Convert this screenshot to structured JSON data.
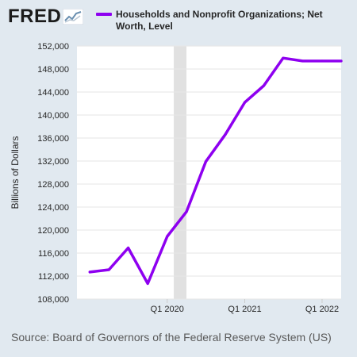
{
  "logo": {
    "text": "FRED",
    "icon": "line-graph-icon"
  },
  "colors": {
    "background": "#e1e9f0",
    "plot_background": "#ffffff",
    "series": "#8e00f0",
    "recession": "#e1e1e1",
    "grid": "#e6e6e6",
    "text": "#262626"
  },
  "chart_data": {
    "type": "line",
    "title": "",
    "xlabel": "",
    "ylabel": "Billions of Dollars",
    "ylim": [
      108000,
      152000
    ],
    "yticks": [
      108000,
      112000,
      116000,
      120000,
      124000,
      128000,
      132000,
      136000,
      140000,
      144000,
      148000,
      152000
    ],
    "xtick_labels": [
      {
        "x": "2020-01-01",
        "label": "Q1 2020"
      },
      {
        "x": "2021-01-01",
        "label": "Q1 2021"
      },
      {
        "x": "2022-01-01",
        "label": "Q1 2022"
      }
    ],
    "grid": "horizontal",
    "legend_position": "top",
    "recession_shading": [
      {
        "start": "2020-02-01",
        "end": "2020-04-01"
      }
    ],
    "series": [
      {
        "name": "Households and Nonprofit Organizations; Net Worth, Level",
        "x": [
          "2019-01-01",
          "2019-04-01",
          "2019-07-01",
          "2019-10-01",
          "2020-01-01",
          "2020-04-01",
          "2020-07-01",
          "2020-10-01",
          "2021-01-01",
          "2021-04-01",
          "2021-07-01",
          "2021-10-01",
          "2022-01-01",
          "2022-04-01"
        ],
        "values": [
          112700,
          113100,
          116900,
          110700,
          118900,
          123200,
          131900,
          136600,
          142200,
          145100,
          149900,
          149400,
          149400,
          149400
        ]
      }
    ]
  },
  "source": "Source: Board of Governors of the Federal Reserve System (US)"
}
